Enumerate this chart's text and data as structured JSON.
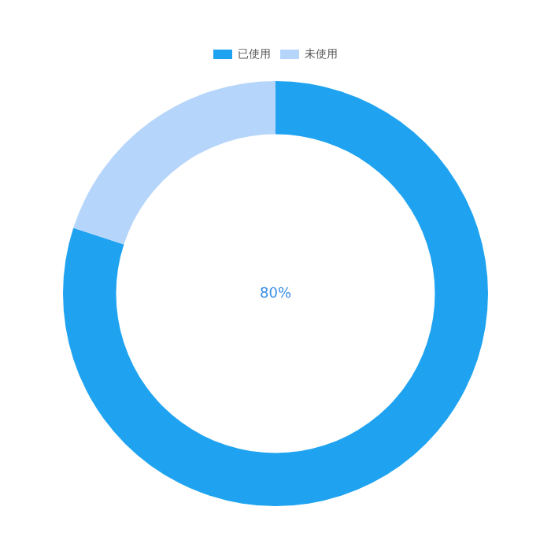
{
  "chart_data": {
    "type": "donut",
    "categories": [
      "已使用",
      "未使用"
    ],
    "values": [
      80,
      20
    ],
    "colors": [
      "#1fa3f0",
      "#b5d5fb"
    ],
    "legend": "top",
    "annotations": [
      "80%"
    ]
  }
}
